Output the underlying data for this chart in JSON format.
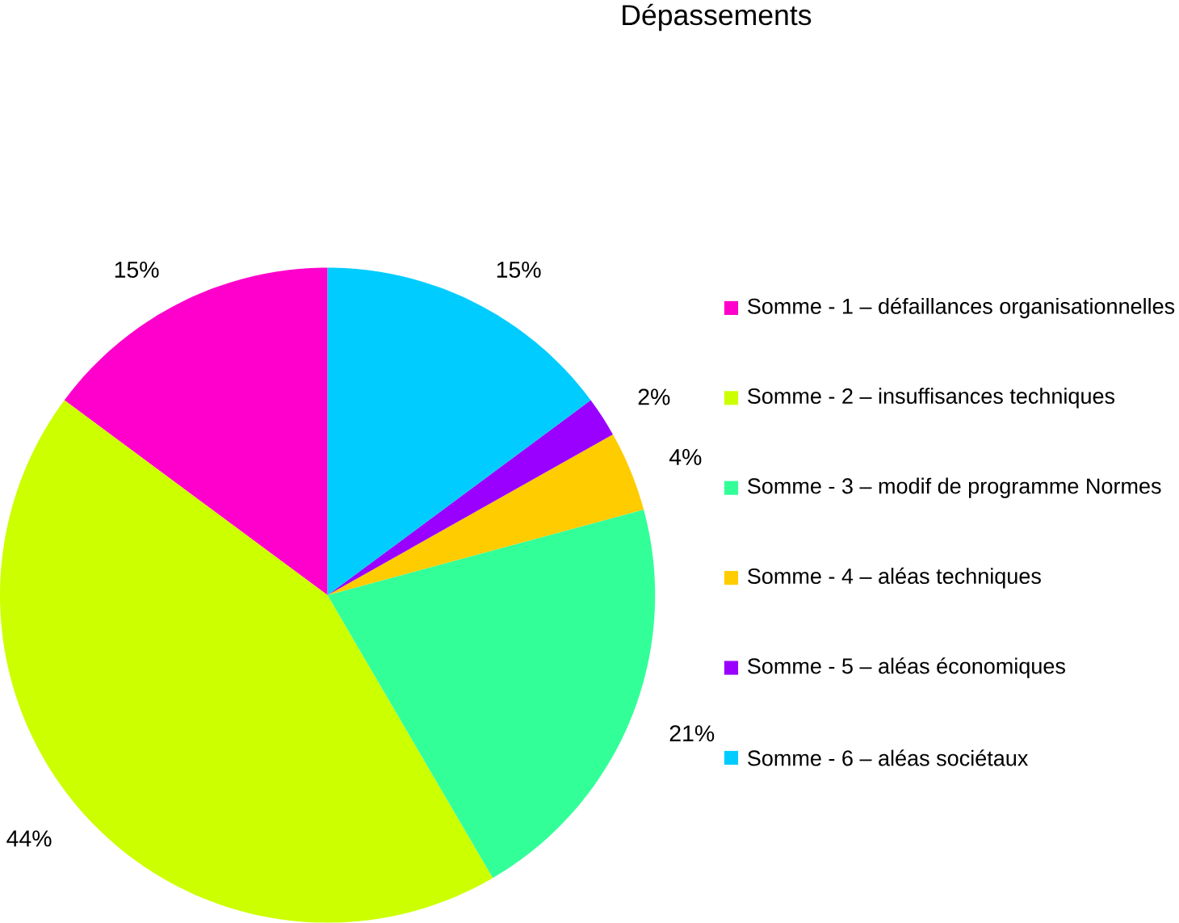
{
  "chart_data": {
    "type": "pie",
    "title": "Dépassements",
    "categories": [
      "Somme - 1 – défaillances organisationnelles",
      "Somme - 2 – insuffisances techniques",
      "Somme - 3 – modif de programme Normes",
      "Somme - 4 – aléas techniques",
      "Somme - 5 – aléas économiques",
      "Somme - 6 – aléas sociétaux"
    ],
    "values": [
      15,
      44,
      21,
      4,
      2,
      15
    ],
    "value_labels": [
      "15%",
      "44%",
      "21%",
      "4%",
      "2%",
      "15%"
    ],
    "colors": [
      "#ff00cc",
      "#ccff00",
      "#33ff99",
      "#ffcc00",
      "#9900ff",
      "#00ccff"
    ],
    "legend": "right"
  }
}
